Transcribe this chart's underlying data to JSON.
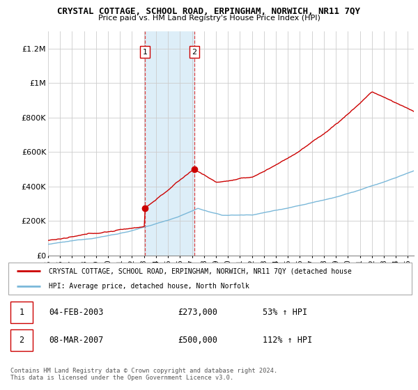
{
  "title": "CRYSTAL COTTAGE, SCHOOL ROAD, ERPINGHAM, NORWICH, NR11 7QY",
  "subtitle": "Price paid vs. HM Land Registry's House Price Index (HPI)",
  "ylabel_ticks": [
    "£0",
    "£200K",
    "£400K",
    "£600K",
    "£800K",
    "£1M",
    "£1.2M"
  ],
  "ytick_values": [
    0,
    200000,
    400000,
    600000,
    800000,
    1000000,
    1200000
  ],
  "ylim": [
    0,
    1300000
  ],
  "xlim_start": 1995.0,
  "xlim_end": 2025.5,
  "hpi_color": "#7ab8d9",
  "price_color": "#cc0000",
  "shading_color": "#ddeef8",
  "purchase1_x": 2003.09,
  "purchase1_y": 273000,
  "purchase2_x": 2007.19,
  "purchase2_y": 500000,
  "vline1_x": 2003.09,
  "vline2_x": 2007.19,
  "legend_line1": "CRYSTAL COTTAGE, SCHOOL ROAD, ERPINGHAM, NORWICH, NR11 7QY (detached house",
  "legend_line2": "HPI: Average price, detached house, North Norfolk",
  "table_row1": [
    "1",
    "04-FEB-2003",
    "£273,000",
    "53% ↑ HPI"
  ],
  "table_row2": [
    "2",
    "08-MAR-2007",
    "£500,000",
    "112% ↑ HPI"
  ],
  "footnote": "Contains HM Land Registry data © Crown copyright and database right 2024.\nThis data is licensed under the Open Government Licence v3.0."
}
